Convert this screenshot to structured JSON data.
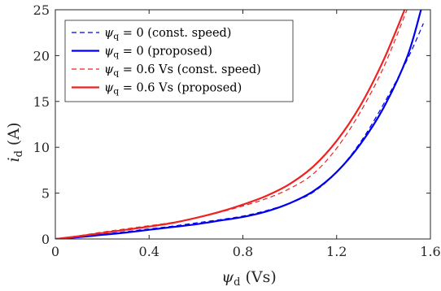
{
  "chart_data": {
    "type": "line",
    "xlabel_main": "ψ",
    "xlabel_sub": "d",
    "xlabel_unit": "(Vs)",
    "ylabel_main": "i",
    "ylabel_sub": "d",
    "ylabel_unit": "(A)",
    "xlim": [
      0,
      1.6
    ],
    "ylim": [
      0,
      25
    ],
    "xticks": [
      0,
      0.4,
      0.8,
      1.2,
      1.6
    ],
    "xtick_labels": [
      "0",
      "0.4",
      "0.8",
      "1.2",
      "1.6"
    ],
    "yticks": [
      0,
      5,
      10,
      15,
      20,
      25
    ],
    "ytick_labels": [
      "0",
      "5",
      "10",
      "15",
      "20",
      "25"
    ],
    "grid": false,
    "legend_position": "top-left",
    "series": [
      {
        "name": "ψq = 0 (const. speed)",
        "legend_parts": {
          "symbol": "ψ",
          "sub": "q",
          "rest": " = 0 (const. speed)"
        },
        "color": "#0000ee",
        "dash": "6,4",
        "stroke_width": 1.2,
        "x": [
          0,
          0.1,
          0.2,
          0.3,
          0.4,
          0.5,
          0.6,
          0.7,
          0.8,
          0.9,
          1.0,
          1.1,
          1.2,
          1.3,
          1.4,
          1.5,
          1.57
        ],
        "y": [
          0,
          0.25,
          0.5,
          0.8,
          1.1,
          1.4,
          1.75,
          2.1,
          2.5,
          3.1,
          3.9,
          5.1,
          7.3,
          10.5,
          14.7,
          19.5,
          23.5
        ]
      },
      {
        "name": "ψq = 0 (proposed)",
        "legend_parts": {
          "symbol": "ψ",
          "sub": "q",
          "rest": " = 0 (proposed)"
        },
        "color": "#0000ee",
        "dash": "",
        "stroke_width": 2.2,
        "x": [
          0,
          0.1,
          0.2,
          0.3,
          0.4,
          0.5,
          0.6,
          0.7,
          0.8,
          0.9,
          1.0,
          1.1,
          1.2,
          1.3,
          1.4,
          1.5,
          1.56
        ],
        "y": [
          0,
          0.2,
          0.45,
          0.7,
          1.0,
          1.3,
          1.6,
          2.0,
          2.4,
          3.0,
          3.9,
          5.2,
          7.3,
          10.3,
          14.3,
          19.8,
          25
        ]
      },
      {
        "name": "ψq = 0.6 Vs (const. speed)",
        "legend_parts": {
          "symbol": "ψ",
          "sub": "q",
          "rest": " = 0.6 Vs (const. speed)"
        },
        "color": "#ee2222",
        "dash": "6,4",
        "stroke_width": 1.2,
        "x": [
          0,
          0.1,
          0.2,
          0.3,
          0.4,
          0.5,
          0.6,
          0.7,
          0.8,
          0.9,
          1.0,
          1.1,
          1.2,
          1.3,
          1.4,
          1.5
        ],
        "y": [
          0,
          0.35,
          0.75,
          1.1,
          1.45,
          1.8,
          2.3,
          2.9,
          3.6,
          4.4,
          5.5,
          7.1,
          9.9,
          13.8,
          18.7,
          25
        ]
      },
      {
        "name": "ψq = 0.6 Vs (proposed)",
        "legend_parts": {
          "symbol": "ψ",
          "sub": "q",
          "rest": " = 0.6 Vs (proposed)"
        },
        "color": "#ee2222",
        "dash": "",
        "stroke_width": 2.2,
        "x": [
          0,
          0.1,
          0.2,
          0.3,
          0.4,
          0.5,
          0.6,
          0.7,
          0.8,
          0.9,
          1.0,
          1.1,
          1.2,
          1.3,
          1.4,
          1.49
        ],
        "y": [
          0,
          0.3,
          0.65,
          1.0,
          1.35,
          1.75,
          2.3,
          2.95,
          3.75,
          4.7,
          6.0,
          7.9,
          10.7,
          14.5,
          19.5,
          25
        ]
      }
    ]
  }
}
